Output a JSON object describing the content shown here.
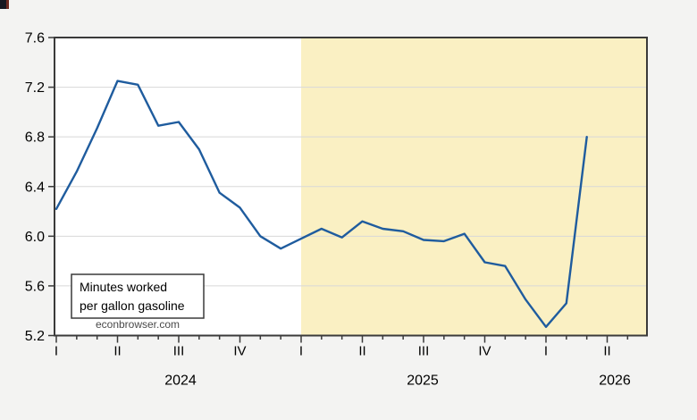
{
  "page": {
    "background_color": "#f3f3f2"
  },
  "chart_data": {
    "type": "line",
    "title_box": {
      "line1": "Minutes worked",
      "line2": "per gallon gasoline"
    },
    "watermark": "econbrowser.com",
    "x_start": "2024-01",
    "x_end": "2026-03",
    "x_frequency": "monthly",
    "values": [
      6.22,
      6.52,
      6.87,
      7.25,
      7.22,
      6.89,
      6.92,
      6.7,
      6.35,
      6.23,
      6.0,
      5.9,
      5.98,
      6.06,
      5.99,
      6.12,
      6.06,
      6.04,
      5.97,
      5.96,
      6.02,
      5.79,
      5.76,
      5.49,
      5.27,
      5.46,
      6.8
    ],
    "forecast_shade_start": "2025-01",
    "forecast_start_index": 12,
    "ylim": [
      5.2,
      7.6
    ],
    "ytick_step": 0.4,
    "ytick_labels": [
      "5.2",
      "5.6",
      "6.0",
      "6.4",
      "6.8",
      "7.2",
      "7.6"
    ],
    "x_quarter_labels": [
      "I",
      "II",
      "III",
      "IV",
      "I",
      "II",
      "III",
      "IV",
      "I",
      "II"
    ],
    "year_labels": [
      "2024",
      "2025",
      "2026"
    ],
    "grid": true,
    "legend": "none",
    "line_color": "#1f5c9e",
    "shade_color": "#faf0c3",
    "frame_color": "#3a3a3a",
    "grid_color": "#d8d8d8",
    "plot_bg_color": "#ffffff"
  }
}
